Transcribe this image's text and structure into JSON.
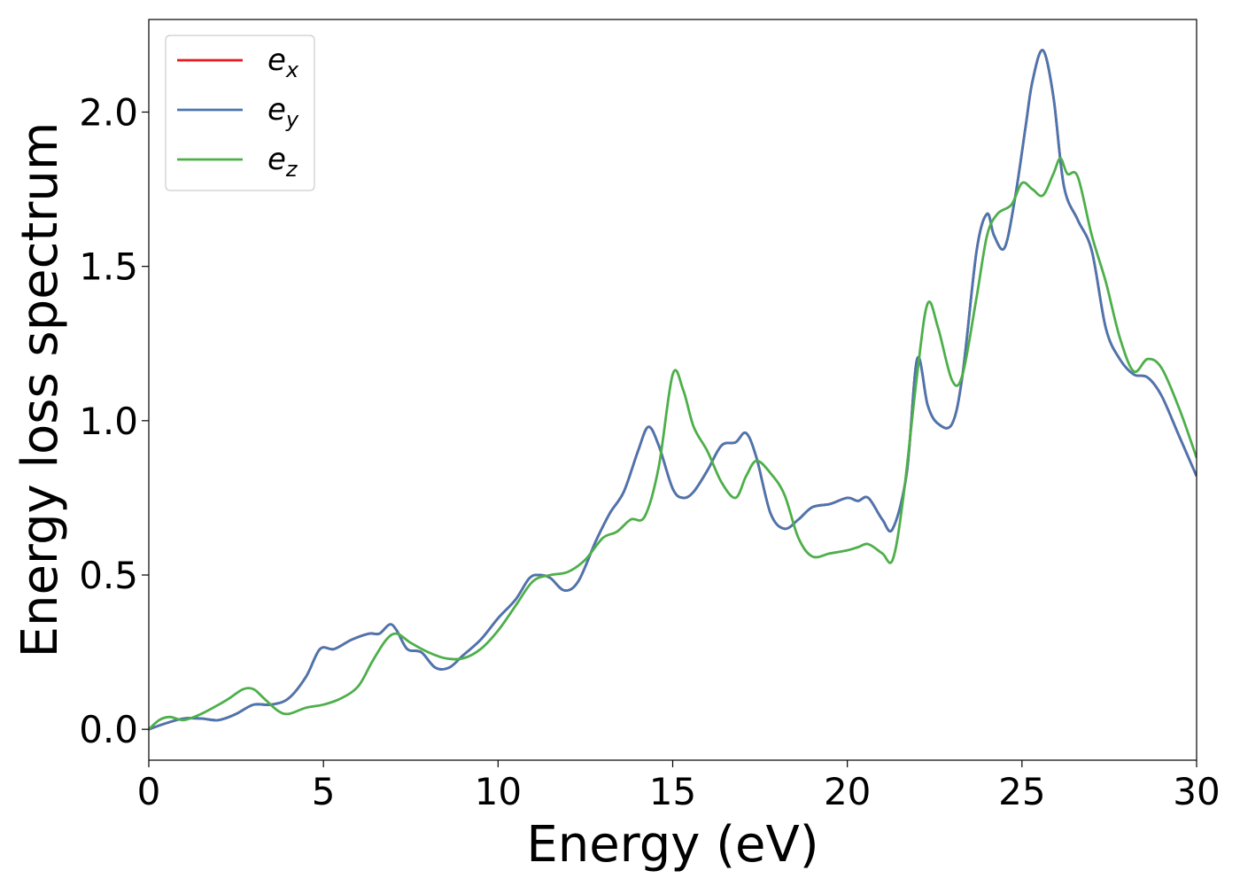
{
  "chart_data": {
    "type": "line",
    "title": "",
    "xlabel": "Energy (eV)",
    "ylabel": "Energy loss spectrum",
    "xlim": [
      0,
      30
    ],
    "ylim": [
      -0.1,
      2.3
    ],
    "xticks": [
      0,
      5,
      10,
      15,
      20,
      25,
      30
    ],
    "xtick_labels": [
      "0",
      "5",
      "10",
      "15",
      "20",
      "25",
      "30"
    ],
    "yticks": [
      0.0,
      0.5,
      1.0,
      1.5,
      2.0
    ],
    "ytick_labels": [
      "0.0",
      "0.5",
      "1.0",
      "1.5",
      "2.0"
    ],
    "grid": false,
    "legend_position": "top-left",
    "series": [
      {
        "name": "e_x",
        "legend_base": "e",
        "legend_sub": "x",
        "color": "#e41a1c",
        "x": [
          0,
          0.5,
          1,
          1.5,
          2,
          2.5,
          3,
          3.5,
          4,
          4.5,
          4.9,
          5.3,
          5.8,
          6.3,
          6.6,
          6.9,
          7.1,
          7.4,
          7.8,
          8.2,
          8.6,
          9,
          9.5,
          10,
          10.5,
          10.9,
          11.2,
          11.5,
          11.9,
          12.3,
          12.8,
          13.2,
          13.6,
          14,
          14.3,
          14.6,
          15,
          15.3,
          15.6,
          16,
          16.4,
          16.8,
          17.1,
          17.4,
          17.8,
          18.2,
          18.6,
          19,
          19.5,
          20,
          20.3,
          20.6,
          21,
          21.3,
          21.7,
          22,
          22.3,
          22.6,
          23,
          23.3,
          23.7,
          24,
          24.2,
          24.5,
          24.8,
          25.1,
          25.3,
          25.6,
          25.9,
          26.2,
          26.6,
          27,
          27.4,
          27.8,
          28.2,
          28.6,
          29,
          29.5,
          30
        ],
        "y": [
          0.0,
          0.02,
          0.035,
          0.035,
          0.03,
          0.05,
          0.08,
          0.08,
          0.1,
          0.17,
          0.26,
          0.26,
          0.29,
          0.31,
          0.31,
          0.34,
          0.32,
          0.26,
          0.25,
          0.2,
          0.2,
          0.24,
          0.29,
          0.36,
          0.42,
          0.49,
          0.5,
          0.49,
          0.45,
          0.48,
          0.61,
          0.7,
          0.77,
          0.9,
          0.98,
          0.92,
          0.78,
          0.75,
          0.77,
          0.84,
          0.92,
          0.93,
          0.96,
          0.88,
          0.7,
          0.65,
          0.68,
          0.72,
          0.73,
          0.75,
          0.74,
          0.75,
          0.68,
          0.65,
          0.83,
          1.2,
          1.05,
          0.99,
          0.99,
          1.15,
          1.55,
          1.67,
          1.6,
          1.56,
          1.72,
          1.95,
          2.1,
          2.2,
          2.05,
          1.76,
          1.65,
          1.55,
          1.3,
          1.2,
          1.15,
          1.14,
          1.08,
          0.95,
          0.82
        ]
      },
      {
        "name": "e_y",
        "legend_base": "e",
        "legend_sub": "y",
        "color": "#4a76b0",
        "x": [
          0,
          0.5,
          1,
          1.5,
          2,
          2.5,
          3,
          3.5,
          4,
          4.5,
          4.9,
          5.3,
          5.8,
          6.3,
          6.6,
          6.9,
          7.1,
          7.4,
          7.8,
          8.2,
          8.6,
          9,
          9.5,
          10,
          10.5,
          10.9,
          11.2,
          11.5,
          11.9,
          12.3,
          12.8,
          13.2,
          13.6,
          14,
          14.3,
          14.6,
          15,
          15.3,
          15.6,
          16,
          16.4,
          16.8,
          17.1,
          17.4,
          17.8,
          18.2,
          18.6,
          19,
          19.5,
          20,
          20.3,
          20.6,
          21,
          21.3,
          21.7,
          22,
          22.3,
          22.6,
          23,
          23.3,
          23.7,
          24,
          24.2,
          24.5,
          24.8,
          25.1,
          25.3,
          25.6,
          25.9,
          26.2,
          26.6,
          27,
          27.4,
          27.8,
          28.2,
          28.6,
          29,
          29.5,
          30
        ],
        "y": [
          0.0,
          0.02,
          0.035,
          0.035,
          0.03,
          0.05,
          0.08,
          0.08,
          0.1,
          0.17,
          0.26,
          0.26,
          0.29,
          0.31,
          0.31,
          0.34,
          0.32,
          0.26,
          0.25,
          0.2,
          0.2,
          0.24,
          0.29,
          0.36,
          0.42,
          0.49,
          0.5,
          0.49,
          0.45,
          0.48,
          0.61,
          0.7,
          0.77,
          0.9,
          0.98,
          0.92,
          0.78,
          0.75,
          0.77,
          0.84,
          0.92,
          0.93,
          0.96,
          0.88,
          0.7,
          0.65,
          0.68,
          0.72,
          0.73,
          0.75,
          0.74,
          0.75,
          0.68,
          0.65,
          0.83,
          1.2,
          1.05,
          0.99,
          0.99,
          1.15,
          1.55,
          1.67,
          1.6,
          1.56,
          1.72,
          1.95,
          2.1,
          2.2,
          2.05,
          1.76,
          1.65,
          1.55,
          1.3,
          1.2,
          1.15,
          1.14,
          1.08,
          0.95,
          0.82
        ]
      },
      {
        "name": "e_z",
        "legend_base": "e",
        "legend_sub": "z",
        "color": "#4daf4a",
        "x": [
          0,
          0.3,
          0.6,
          1,
          1.5,
          2,
          2.3,
          2.7,
          3,
          3.3,
          3.7,
          4,
          4.5,
          5,
          5.5,
          6,
          6.4,
          6.8,
          7.1,
          7.5,
          8,
          8.5,
          9,
          9.5,
          10,
          10.5,
          11,
          11.5,
          12,
          12.5,
          13,
          13.4,
          13.8,
          14.2,
          14.6,
          15,
          15.3,
          15.6,
          16,
          16.4,
          16.8,
          17.1,
          17.4,
          17.8,
          18.2,
          18.6,
          19,
          19.5,
          20,
          20.3,
          20.6,
          21,
          21.3,
          21.6,
          22,
          22.3,
          22.6,
          23,
          23.3,
          23.7,
          24,
          24.3,
          24.7,
          25,
          25.3,
          25.6,
          25.9,
          26.1,
          26.3,
          26.6,
          27,
          27.4,
          27.8,
          28.2,
          28.6,
          29,
          29.5,
          30
        ],
        "y": [
          0.0,
          0.03,
          0.04,
          0.03,
          0.05,
          0.08,
          0.1,
          0.13,
          0.13,
          0.1,
          0.06,
          0.05,
          0.07,
          0.08,
          0.1,
          0.14,
          0.22,
          0.29,
          0.31,
          0.28,
          0.25,
          0.23,
          0.23,
          0.26,
          0.32,
          0.4,
          0.48,
          0.5,
          0.51,
          0.55,
          0.62,
          0.64,
          0.68,
          0.69,
          0.85,
          1.15,
          1.1,
          0.98,
          0.9,
          0.8,
          0.75,
          0.82,
          0.87,
          0.83,
          0.76,
          0.62,
          0.56,
          0.57,
          0.58,
          0.59,
          0.6,
          0.57,
          0.55,
          0.75,
          1.15,
          1.38,
          1.3,
          1.13,
          1.15,
          1.4,
          1.6,
          1.67,
          1.7,
          1.77,
          1.75,
          1.73,
          1.8,
          1.85,
          1.8,
          1.79,
          1.6,
          1.45,
          1.27,
          1.16,
          1.2,
          1.17,
          1.04,
          0.88
        ]
      }
    ]
  }
}
